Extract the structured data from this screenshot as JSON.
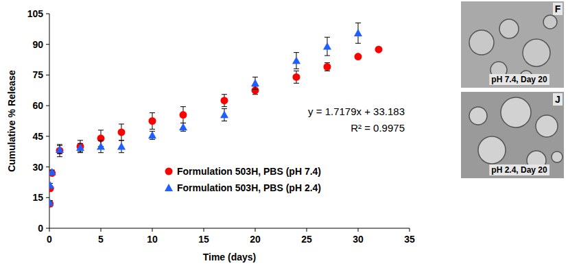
{
  "chart_data": {
    "type": "scatter",
    "x_label": "Time (days)",
    "y_label": "Cumulative % Release",
    "xlim": [
      0,
      35
    ],
    "xticks": [
      0,
      5,
      10,
      15,
      20,
      25,
      30,
      35
    ],
    "ylim": [
      0,
      105
    ],
    "yticks": [
      0,
      15,
      30,
      45,
      60,
      75,
      90,
      105
    ],
    "grid": false,
    "legend": "lower right",
    "annotations": [
      "y = 1.7179x + 33.183",
      "R² = 0.9975"
    ],
    "series": [
      {
        "name": "Formulation 503H, PBS (pH 7.4)",
        "color": "#ff0000",
        "marker": "circle",
        "x": [
          0.04,
          0.08,
          0.25,
          1,
          3,
          5,
          7,
          10,
          13,
          17,
          20,
          24,
          27,
          30,
          32
        ],
        "values": [
          12,
          19.5,
          27,
          38,
          40,
          44,
          47,
          52.5,
          55.5,
          62.5,
          67.5,
          74,
          79,
          84,
          87.5
        ],
        "errors": [
          1.5,
          1,
          1,
          3,
          3,
          4,
          4,
          4,
          4,
          3,
          2,
          3,
          2,
          1,
          1
        ]
      },
      {
        "name": "Formulation 503H, PBS (pH 2.4)",
        "color": "#1f5fff",
        "marker": "triangle",
        "x": [
          0.04,
          0.08,
          0.25,
          1,
          3,
          5,
          7,
          10,
          13,
          17,
          20,
          24,
          27,
          30
        ],
        "values": [
          12.5,
          21,
          27.5,
          38.5,
          39.5,
          40,
          40,
          45.5,
          49.5,
          55.5,
          71,
          82,
          89,
          95.5
        ],
        "errors": [
          1,
          1,
          1,
          2,
          2,
          3,
          3,
          2,
          2,
          3,
          3,
          4,
          4.5,
          5
        ]
      }
    ]
  },
  "images": [
    {
      "letter": "F",
      "caption": "pH 7.4, Day 20"
    },
    {
      "letter": "J",
      "caption": "pH 2.4, Day 20"
    }
  ]
}
